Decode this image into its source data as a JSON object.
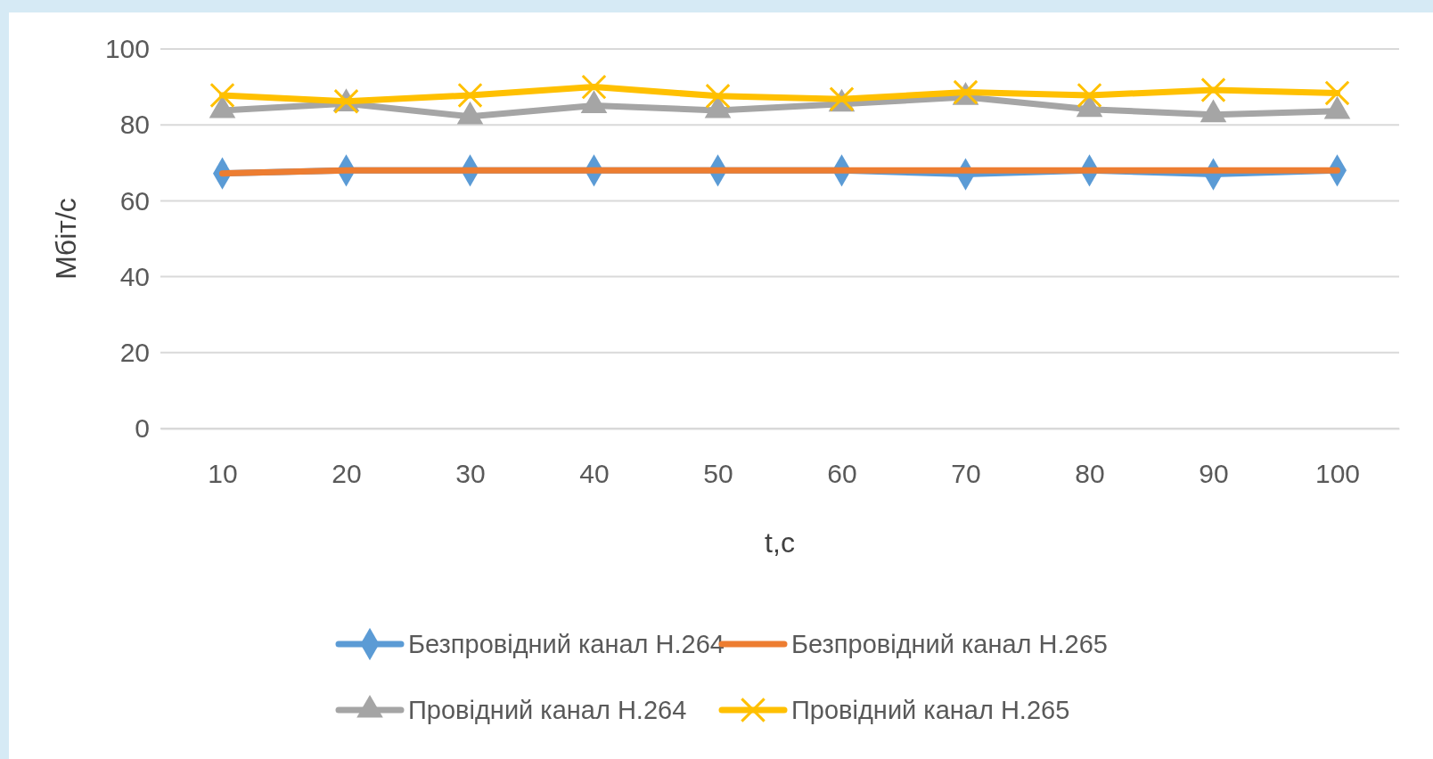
{
  "chart_data": {
    "type": "line",
    "xlabel": "t,c",
    "ylabel": "Мбіт/с",
    "categories": [
      "10",
      "20",
      "30",
      "40",
      "50",
      "60",
      "70",
      "80",
      "90",
      "100"
    ],
    "series": [
      {
        "name": "Безпровідний канал H.264",
        "color": "#5b9bd5",
        "marker": "diamond",
        "values": [
          67.2,
          68,
          68,
          68,
          68,
          68,
          67,
          68,
          67,
          68
        ]
      },
      {
        "name": "Безпровідний канал H.265",
        "color": "#ed7d31",
        "marker": "none",
        "values": [
          67.2,
          68,
          68,
          68,
          68,
          68,
          68,
          68,
          68,
          68
        ]
      },
      {
        "name": "Провідний канал H.264",
        "color": "#a5a5a5",
        "marker": "triangle",
        "values": [
          83.8,
          85.6,
          82.2,
          85.1,
          83.8,
          85.5,
          87.3,
          84.1,
          82.7,
          83.6
        ]
      },
      {
        "name": "Провідний канал H.265",
        "color": "#ffc000",
        "marker": "cross",
        "values": [
          87.8,
          86.2,
          87.8,
          90.0,
          87.6,
          86.8,
          88.6,
          87.8,
          89.2,
          88.4
        ]
      }
    ],
    "ylim": [
      0,
      100
    ],
    "yticks": [
      0,
      20,
      40,
      60,
      80,
      100
    ],
    "grid": "y",
    "legend": "bottom"
  }
}
